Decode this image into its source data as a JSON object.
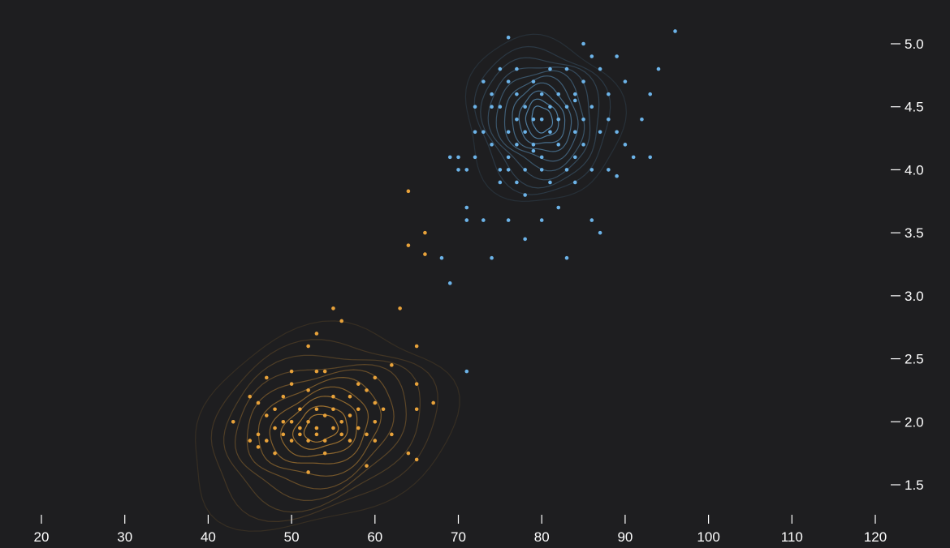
{
  "chart_data": {
    "type": "scatter",
    "title": "",
    "xlabel": "",
    "ylabel": "",
    "xlim": [
      20,
      120
    ],
    "ylim": [
      1.5,
      5.0
    ],
    "x_ticks": [
      20,
      30,
      40,
      50,
      60,
      70,
      80,
      90,
      100,
      110,
      120
    ],
    "y_ticks": [
      5.0,
      4.5,
      4.0,
      3.5,
      3.0,
      2.5,
      2.0,
      1.5
    ],
    "y_axis_position": "right",
    "grid": false,
    "legend": "none",
    "background": "#1e1e20",
    "overlay": "kernel density contours",
    "series": [
      {
        "color": "#e8a23a",
        "density_center": [
          53.5,
          1.95
        ],
        "points": [
          [
            43,
            2.0
          ],
          [
            45,
            1.85
          ],
          [
            45,
            2.2
          ],
          [
            46,
            1.9
          ],
          [
            46,
            2.15
          ],
          [
            46,
            1.8
          ],
          [
            47,
            2.05
          ],
          [
            47,
            1.85
          ],
          [
            47,
            2.35
          ],
          [
            48,
            1.95
          ],
          [
            48,
            2.1
          ],
          [
            48,
            1.75
          ],
          [
            49,
            2.2
          ],
          [
            49,
            1.9
          ],
          [
            49,
            2.0
          ],
          [
            50,
            2.3
          ],
          [
            50,
            2.0
          ],
          [
            50,
            1.85
          ],
          [
            50,
            2.4
          ],
          [
            51,
            2.1
          ],
          [
            51,
            1.9
          ],
          [
            51,
            1.95
          ],
          [
            52,
            2.25
          ],
          [
            52,
            2.0
          ],
          [
            52,
            1.85
          ],
          [
            52,
            1.6
          ],
          [
            53,
            2.1
          ],
          [
            53,
            1.9
          ],
          [
            53,
            2.4
          ],
          [
            53,
            1.95
          ],
          [
            54,
            2.05
          ],
          [
            54,
            1.85
          ],
          [
            54,
            1.75
          ],
          [
            54,
            2.4
          ],
          [
            55,
            2.2
          ],
          [
            55,
            1.95
          ],
          [
            55,
            2.1
          ],
          [
            55,
            2.9
          ],
          [
            56,
            1.9
          ],
          [
            56,
            2.0
          ],
          [
            56,
            2.8
          ],
          [
            57,
            2.2
          ],
          [
            57,
            1.85
          ],
          [
            57,
            2.05
          ],
          [
            58,
            1.95
          ],
          [
            58,
            2.1
          ],
          [
            58,
            2.3
          ],
          [
            59,
            1.9
          ],
          [
            59,
            2.25
          ],
          [
            59,
            1.65
          ],
          [
            60,
            2.0
          ],
          [
            60,
            2.15
          ],
          [
            60,
            1.85
          ],
          [
            60,
            2.35
          ],
          [
            61,
            2.1
          ],
          [
            62,
            2.45
          ],
          [
            62,
            1.9
          ],
          [
            63,
            2.9
          ],
          [
            64,
            1.75
          ],
          [
            64,
            3.4
          ],
          [
            64,
            3.83
          ],
          [
            65,
            2.6
          ],
          [
            65,
            2.3
          ],
          [
            65,
            2.1
          ],
          [
            65,
            1.7
          ],
          [
            66,
            3.5
          ],
          [
            66,
            3.33
          ],
          [
            67,
            2.15
          ],
          [
            52,
            2.6
          ],
          [
            53,
            2.7
          ]
        ]
      },
      {
        "color": "#6cb3e8",
        "density_center": [
          80,
          4.4
        ],
        "points": [
          [
            68,
            3.3
          ],
          [
            69,
            3.1
          ],
          [
            69,
            4.1
          ],
          [
            70,
            4.0
          ],
          [
            70,
            4.1
          ],
          [
            71,
            3.6
          ],
          [
            71,
            3.7
          ],
          [
            71,
            4.0
          ],
          [
            71,
            2.4
          ],
          [
            72,
            4.3
          ],
          [
            72,
            4.5
          ],
          [
            73,
            3.6
          ],
          [
            73,
            4.3
          ],
          [
            73,
            4.7
          ],
          [
            74,
            4.2
          ],
          [
            74,
            4.6
          ],
          [
            74,
            3.3
          ],
          [
            75,
            4.5
          ],
          [
            75,
            4.0
          ],
          [
            75,
            4.8
          ],
          [
            75,
            3.9
          ],
          [
            76,
            4.3
          ],
          [
            76,
            4.7
          ],
          [
            76,
            4.1
          ],
          [
            76,
            5.05
          ],
          [
            76,
            3.6
          ],
          [
            77,
            4.4
          ],
          [
            77,
            4.6
          ],
          [
            77,
            4.2
          ],
          [
            77,
            3.9
          ],
          [
            77,
            4.8
          ],
          [
            78,
            4.5
          ],
          [
            78,
            4.3
          ],
          [
            78,
            3.8
          ],
          [
            78,
            3.45
          ],
          [
            78,
            4.0
          ],
          [
            79,
            4.4
          ],
          [
            79,
            4.7
          ],
          [
            79,
            4.2
          ],
          [
            80,
            4.1
          ],
          [
            80,
            4.4
          ],
          [
            80,
            4.6
          ],
          [
            80,
            4.0
          ],
          [
            80,
            3.6
          ],
          [
            81,
            4.3
          ],
          [
            81,
            4.5
          ],
          [
            81,
            4.8
          ],
          [
            81,
            3.9
          ],
          [
            82,
            4.2
          ],
          [
            82,
            4.6
          ],
          [
            82,
            4.4
          ],
          [
            82,
            3.7
          ],
          [
            83,
            4.5
          ],
          [
            83,
            4.0
          ],
          [
            83,
            4.8
          ],
          [
            83,
            3.3
          ],
          [
            84,
            4.3
          ],
          [
            84,
            4.6
          ],
          [
            84,
            4.1
          ],
          [
            84,
            3.9
          ],
          [
            85,
            4.4
          ],
          [
            85,
            4.7
          ],
          [
            85,
            4.2
          ],
          [
            86,
            4.5
          ],
          [
            86,
            4.9
          ],
          [
            86,
            3.6
          ],
          [
            86,
            4.0
          ],
          [
            87,
            4.3
          ],
          [
            87,
            4.8
          ],
          [
            87,
            3.5
          ],
          [
            88,
            4.6
          ],
          [
            88,
            4.0
          ],
          [
            88,
            4.4
          ],
          [
            89,
            4.3
          ],
          [
            89,
            4.9
          ],
          [
            89,
            3.95
          ],
          [
            90,
            4.7
          ],
          [
            90,
            4.2
          ],
          [
            91,
            4.1
          ],
          [
            92,
            4.4
          ],
          [
            93,
            4.6
          ],
          [
            93,
            4.1
          ],
          [
            94,
            4.8
          ],
          [
            96,
            5.1
          ],
          [
            85,
            5.0
          ],
          [
            84,
            4.55
          ],
          [
            79,
            4.15
          ],
          [
            76,
            4.0
          ],
          [
            74,
            4.5
          ],
          [
            72,
            4.1
          ]
        ]
      }
    ]
  }
}
